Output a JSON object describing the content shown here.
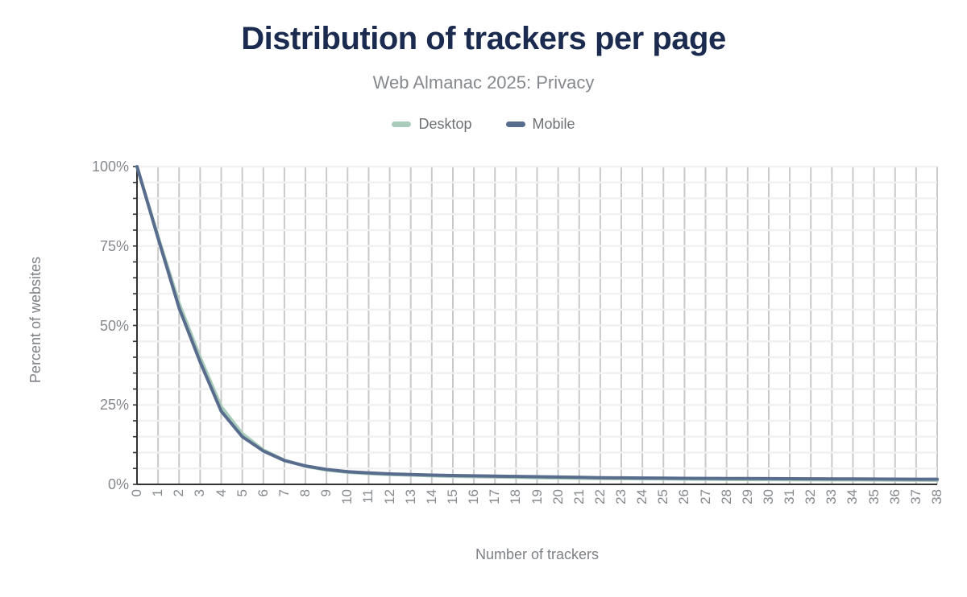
{
  "chart_data": {
    "type": "line",
    "title": "Distribution of trackers per page",
    "subtitle": "Web Almanac 2025: Privacy",
    "xlabel": "Number of trackers",
    "ylabel": "Percent of websites",
    "categories": [
      0,
      1,
      2,
      3,
      4,
      5,
      6,
      7,
      8,
      9,
      10,
      11,
      12,
      13,
      14,
      15,
      16,
      17,
      18,
      19,
      20,
      21,
      22,
      23,
      24,
      25,
      26,
      27,
      28,
      29,
      30,
      31,
      32,
      33,
      34,
      35,
      36,
      37,
      38
    ],
    "x_tick_labels": [
      "0",
      "1",
      "2",
      "3",
      "4",
      "5",
      "6",
      "7",
      "8",
      "9",
      "10",
      "11",
      "12",
      "13",
      "14",
      "15",
      "16",
      "17",
      "18",
      "19",
      "20",
      "21",
      "22",
      "23",
      "24",
      "25",
      "26",
      "27",
      "28",
      "29",
      "30",
      "31",
      "32",
      "33",
      "34",
      "35",
      "36",
      "37",
      "38"
    ],
    "y_ticks": [
      0,
      25,
      50,
      75,
      100
    ],
    "y_tick_labels": [
      "0%",
      "25%",
      "50%",
      "75%",
      "100%"
    ],
    "ylim": [
      0,
      100
    ],
    "y_minor_step": 5,
    "grid": true,
    "legend_position": "top",
    "series": [
      {
        "name": "Desktop",
        "color": "#a9ccba",
        "values": [
          100,
          78,
          57,
          40,
          24.5,
          16,
          10.8,
          7.6,
          5.7,
          4.5,
          3.8,
          3.4,
          3.1,
          2.9,
          2.7,
          2.5,
          2.4,
          2.3,
          2.2,
          2.1,
          2.0,
          1.9,
          1.85,
          1.8,
          1.75,
          1.7,
          1.65,
          1.6,
          1.55,
          1.5,
          1.48,
          1.45,
          1.42,
          1.4,
          1.38,
          1.35,
          1.32,
          1.3,
          1.28
        ]
      },
      {
        "name": "Mobile",
        "color": "#586c8d",
        "values": [
          100,
          77.5,
          55.5,
          38.5,
          23,
          15,
          10.5,
          7.5,
          5.8,
          4.7,
          4.0,
          3.6,
          3.3,
          3.1,
          2.9,
          2.8,
          2.7,
          2.6,
          2.5,
          2.4,
          2.3,
          2.2,
          2.1,
          2.05,
          2.0,
          1.95,
          1.9,
          1.88,
          1.85,
          1.82,
          1.8,
          1.78,
          1.75,
          1.72,
          1.7,
          1.68,
          1.65,
          1.62,
          1.6
        ]
      }
    ]
  },
  "colors": {
    "title": "#1b2b4f",
    "subtitle": "#85888c",
    "axis_title": "#7d8085",
    "tick_label": "#85888c",
    "legend_label": "#6e7174",
    "axis_line": "#333333",
    "grid_vertical": "#c9c9c9",
    "grid_horizontal": "#f1f1f1",
    "background": "#ffffff"
  }
}
